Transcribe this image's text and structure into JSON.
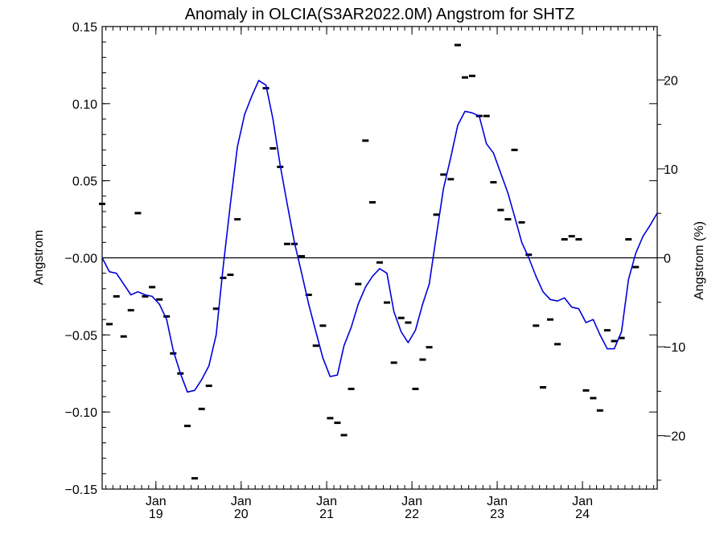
{
  "chart_data": {
    "type": "line",
    "title": "Anomaly in OLCIA(S3AR2022.0M) Angstrom for SHTZ",
    "ylabel": "Angstrom",
    "ylabel_right": "Angstrom (%)",
    "ylim": [
      -0.15,
      0.15
    ],
    "y_ticks": [
      -0.15,
      -0.1,
      -0.05,
      0.0,
      0.05,
      0.1,
      0.15
    ],
    "y_tick_labels": [
      "−0.15",
      "−0.10",
      "−0.05",
      "−0.00",
      "0.05",
      "0.10",
      "0.15"
    ],
    "y2lim": [
      -26,
      26
    ],
    "y2_ticks": [
      -20,
      -10,
      0,
      10,
      20
    ],
    "y2_tick_labels": [
      "−20",
      "−10",
      "0",
      "10",
      "20"
    ],
    "xlim": [
      "2018-05-16",
      "2024-11-16"
    ],
    "x_ticks": [
      {
        "date": "2019-01-01",
        "month": "Jan",
        "year": "19"
      },
      {
        "date": "2020-01-01",
        "month": "Jan",
        "year": "20"
      },
      {
        "date": "2021-01-01",
        "month": "Jan",
        "year": "21"
      },
      {
        "date": "2022-01-01",
        "month": "Jan",
        "year": "22"
      },
      {
        "date": "2023-01-01",
        "month": "Jan",
        "year": "23"
      },
      {
        "date": "2024-01-01",
        "month": "Jan",
        "year": "24"
      }
    ],
    "zero_line": 0,
    "grid": false,
    "series": [
      {
        "style": "markers",
        "color": "#000000",
        "points": [
          [
            "2018-05-16",
            0.035
          ],
          [
            "2018-06-16",
            -0.043
          ],
          [
            "2018-07-16",
            -0.025
          ],
          [
            "2018-08-16",
            -0.051
          ],
          [
            "2018-09-16",
            -0.034
          ],
          [
            "2018-10-16",
            0.029
          ],
          [
            "2018-11-16",
            -0.025
          ],
          [
            "2018-12-16",
            -0.019
          ],
          [
            "2019-01-16",
            -0.027
          ],
          [
            "2019-02-16",
            -0.038
          ],
          [
            "2019-03-16",
            -0.062
          ],
          [
            "2019-04-16",
            -0.075
          ],
          [
            "2019-05-16",
            -0.109
          ],
          [
            "2019-06-16",
            -0.143
          ],
          [
            "2019-07-16",
            -0.098
          ],
          [
            "2019-08-16",
            -0.083
          ],
          [
            "2019-09-16",
            -0.033
          ],
          [
            "2019-10-16",
            -0.013
          ],
          [
            "2019-11-16",
            -0.011
          ],
          [
            "2019-12-16",
            0.025
          ],
          [
            "2020-04-16",
            0.11
          ],
          [
            "2020-05-16",
            0.071
          ],
          [
            "2020-06-16",
            0.059
          ],
          [
            "2020-07-16",
            0.009
          ],
          [
            "2020-08-16",
            0.009
          ],
          [
            "2020-09-16",
            0.001
          ],
          [
            "2020-10-16",
            -0.024
          ],
          [
            "2020-11-16",
            -0.057
          ],
          [
            "2020-12-16",
            -0.044
          ],
          [
            "2021-01-16",
            -0.104
          ],
          [
            "2021-02-16",
            -0.107
          ],
          [
            "2021-03-16",
            -0.115
          ],
          [
            "2021-04-16",
            -0.085
          ],
          [
            "2021-05-16",
            -0.017
          ],
          [
            "2021-06-16",
            0.076
          ],
          [
            "2021-07-16",
            0.036
          ],
          [
            "2021-08-16",
            -0.003
          ],
          [
            "2021-09-16",
            -0.029
          ],
          [
            "2021-10-16",
            -0.068
          ],
          [
            "2021-11-16",
            -0.039
          ],
          [
            "2021-12-16",
            -0.042
          ],
          [
            "2022-01-16",
            -0.085
          ],
          [
            "2022-02-16",
            -0.066
          ],
          [
            "2022-03-16",
            -0.058
          ],
          [
            "2022-04-16",
            0.028
          ],
          [
            "2022-05-16",
            0.054
          ],
          [
            "2022-06-16",
            0.051
          ],
          [
            "2022-07-16",
            0.138
          ],
          [
            "2022-08-16",
            0.117
          ],
          [
            "2022-09-16",
            0.118
          ],
          [
            "2022-10-16",
            0.092
          ],
          [
            "2022-11-16",
            0.092
          ],
          [
            "2022-12-16",
            0.049
          ],
          [
            "2023-01-16",
            0.031
          ],
          [
            "2023-02-16",
            0.025
          ],
          [
            "2023-03-16",
            0.07
          ],
          [
            "2023-04-16",
            0.023
          ],
          [
            "2023-05-16",
            0.002
          ],
          [
            "2023-06-16",
            -0.044
          ],
          [
            "2023-07-16",
            -0.084
          ],
          [
            "2023-08-16",
            -0.04
          ],
          [
            "2023-09-16",
            -0.056
          ],
          [
            "2023-10-16",
            0.012
          ],
          [
            "2023-11-16",
            0.014
          ],
          [
            "2023-12-16",
            0.012
          ],
          [
            "2024-01-16",
            -0.086
          ],
          [
            "2024-02-16",
            -0.091
          ],
          [
            "2024-03-16",
            -0.099
          ],
          [
            "2024-04-16",
            -0.047
          ],
          [
            "2024-05-16",
            -0.054
          ],
          [
            "2024-06-16",
            -0.052
          ],
          [
            "2024-07-16",
            0.012
          ],
          [
            "2024-08-16",
            -0.006
          ]
        ]
      },
      {
        "style": "line",
        "color": "#0000dd",
        "points": [
          [
            "2018-05-16",
            0.0
          ],
          [
            "2018-06-16",
            -0.009
          ],
          [
            "2018-07-16",
            -0.01
          ],
          [
            "2018-08-16",
            -0.017
          ],
          [
            "2018-09-16",
            -0.024
          ],
          [
            "2018-10-16",
            -0.022
          ],
          [
            "2018-11-16",
            -0.024
          ],
          [
            "2018-12-16",
            -0.025
          ],
          [
            "2019-01-16",
            -0.03
          ],
          [
            "2019-02-16",
            -0.04
          ],
          [
            "2019-03-16",
            -0.06
          ],
          [
            "2019-04-16",
            -0.075
          ],
          [
            "2019-05-16",
            -0.087
          ],
          [
            "2019-06-16",
            -0.086
          ],
          [
            "2019-07-16",
            -0.079
          ],
          [
            "2019-08-16",
            -0.07
          ],
          [
            "2019-09-16",
            -0.05
          ],
          [
            "2019-10-16",
            -0.006
          ],
          [
            "2019-11-16",
            0.035
          ],
          [
            "2019-12-16",
            0.072
          ],
          [
            "2020-01-16",
            0.093
          ],
          [
            "2020-02-16",
            0.105
          ],
          [
            "2020-03-16",
            0.115
          ],
          [
            "2020-04-16",
            0.112
          ],
          [
            "2020-05-16",
            0.09
          ],
          [
            "2020-06-16",
            0.06
          ],
          [
            "2020-07-16",
            0.035
          ],
          [
            "2020-08-16",
            0.01
          ],
          [
            "2020-09-16",
            -0.01
          ],
          [
            "2020-10-16",
            -0.03
          ],
          [
            "2020-11-16",
            -0.048
          ],
          [
            "2020-12-16",
            -0.065
          ],
          [
            "2021-01-16",
            -0.077
          ],
          [
            "2021-02-16",
            -0.076
          ],
          [
            "2021-03-16",
            -0.057
          ],
          [
            "2021-04-16",
            -0.045
          ],
          [
            "2021-05-16",
            -0.03
          ],
          [
            "2021-06-16",
            -0.019
          ],
          [
            "2021-07-16",
            -0.012
          ],
          [
            "2021-08-16",
            -0.007
          ],
          [
            "2021-09-16",
            -0.01
          ],
          [
            "2021-10-16",
            -0.035
          ],
          [
            "2021-11-16",
            -0.048
          ],
          [
            "2021-12-16",
            -0.055
          ],
          [
            "2022-01-16",
            -0.047
          ],
          [
            "2022-02-16",
            -0.03
          ],
          [
            "2022-03-16",
            -0.017
          ],
          [
            "2022-04-16",
            0.015
          ],
          [
            "2022-05-16",
            0.045
          ],
          [
            "2022-06-16",
            0.065
          ],
          [
            "2022-07-16",
            0.086
          ],
          [
            "2022-08-16",
            0.095
          ],
          [
            "2022-09-16",
            0.094
          ],
          [
            "2022-10-16",
            0.092
          ],
          [
            "2022-11-16",
            0.074
          ],
          [
            "2022-12-16",
            0.068
          ],
          [
            "2023-01-16",
            0.055
          ],
          [
            "2023-02-16",
            0.042
          ],
          [
            "2023-03-16",
            0.027
          ],
          [
            "2023-04-16",
            0.01
          ],
          [
            "2023-05-16",
            0.0
          ],
          [
            "2023-06-16",
            -0.012
          ],
          [
            "2023-07-16",
            -0.022
          ],
          [
            "2023-08-16",
            -0.027
          ],
          [
            "2023-09-16",
            -0.028
          ],
          [
            "2023-10-16",
            -0.026
          ],
          [
            "2023-11-16",
            -0.032
          ],
          [
            "2023-12-16",
            -0.033
          ],
          [
            "2024-01-16",
            -0.042
          ],
          [
            "2024-02-16",
            -0.04
          ],
          [
            "2024-03-16",
            -0.05
          ],
          [
            "2024-04-16",
            -0.059
          ],
          [
            "2024-05-16",
            -0.059
          ],
          [
            "2024-06-16",
            -0.048
          ],
          [
            "2024-07-16",
            -0.014
          ],
          [
            "2024-08-16",
            0.003
          ],
          [
            "2024-09-16",
            0.014
          ],
          [
            "2024-10-16",
            0.021
          ],
          [
            "2024-11-16",
            0.029
          ]
        ]
      }
    ]
  }
}
